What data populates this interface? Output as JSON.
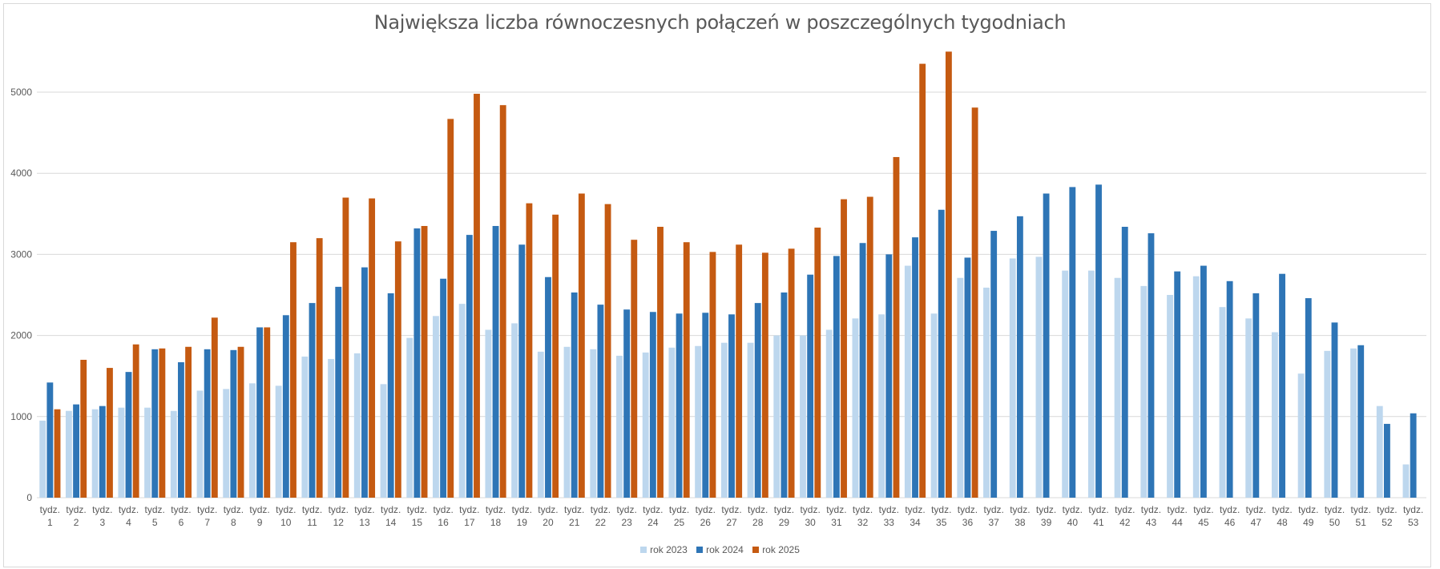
{
  "chart_data": {
    "type": "bar",
    "title": "Największa liczba równoczesnych połączeń w poszczególnych tygodniach",
    "xlabel": "",
    "ylabel": "",
    "ylim": [
      0,
      5500
    ],
    "yticks": [
      0,
      1000,
      2000,
      3000,
      4000,
      5000
    ],
    "grid": true,
    "legend_position": "bottom",
    "categories": [
      "tydz. 1",
      "tydz. 2",
      "tydz. 3",
      "tydz. 4",
      "tydz. 5",
      "tydz. 6",
      "tydz. 7",
      "tydz. 8",
      "tydz. 9",
      "tydz. 10",
      "tydz. 11",
      "tydz. 12",
      "tydz. 13",
      "tydz. 14",
      "tydz. 15",
      "tydz. 16",
      "tydz. 17",
      "tydz. 18",
      "tydz. 19",
      "tydz. 20",
      "tydz. 21",
      "tydz. 22",
      "tydz. 23",
      "tydz. 24",
      "tydz. 25",
      "tydz. 26",
      "tydz. 27",
      "tydz. 28",
      "tydz. 29",
      "tydz. 30",
      "tydz. 31",
      "tydz. 32",
      "tydz. 33",
      "tydz. 34",
      "tydz. 35",
      "tydz. 36",
      "tydz. 37",
      "tydz. 38",
      "tydz. 39",
      "tydz. 40",
      "tydz. 41",
      "tydz. 42",
      "tydz. 43",
      "tydz. 44",
      "tydz. 45",
      "tydz. 46",
      "tydz. 47",
      "tydz. 48",
      "tydz. 49",
      "tydz. 50",
      "tydz. 51",
      "tydz. 52",
      "tydz. 53"
    ],
    "series": [
      {
        "name": "rok 2023",
        "color": "#bdd7ee",
        "values": [
          950,
          1070,
          1090,
          1110,
          1110,
          1070,
          1320,
          1340,
          1410,
          1380,
          1740,
          1710,
          1780,
          1400,
          1970,
          2240,
          2390,
          2070,
          2150,
          1800,
          1860,
          1830,
          1750,
          1790,
          1850,
          1870,
          1910,
          1910,
          2000,
          2000,
          2070,
          2210,
          2260,
          2860,
          2270,
          2710,
          2590,
          2950,
          2970,
          2800,
          2800,
          2710,
          2610,
          2500,
          2730,
          2350,
          2210,
          2040,
          1530,
          1810,
          1840,
          1130,
          410
        ]
      },
      {
        "name": "rok 2024",
        "color": "#2e75b6",
        "values": [
          1420,
          1150,
          1130,
          1550,
          1830,
          1670,
          1830,
          1820,
          2100,
          2250,
          2400,
          2600,
          2840,
          2520,
          3320,
          2700,
          3240,
          3350,
          3120,
          2720,
          2530,
          2380,
          2320,
          2290,
          2270,
          2280,
          2260,
          2400,
          2530,
          2750,
          2980,
          3140,
          3000,
          3210,
          3550,
          2960,
          3290,
          3470,
          3750,
          3830,
          3860,
          3340,
          3260,
          2790,
          2860,
          2670,
          2520,
          2760,
          2460,
          2160,
          1880,
          910,
          1040
        ]
      },
      {
        "name": "rok 2025",
        "color": "#c55a11",
        "values": [
          1090,
          1700,
          1600,
          1890,
          1840,
          1860,
          2220,
          1860,
          2100,
          3150,
          3200,
          3700,
          3690,
          3160,
          3350,
          4670,
          4980,
          4840,
          3630,
          3490,
          3750,
          3620,
          3180,
          3340,
          3150,
          3030,
          3120,
          3020,
          3070,
          3330,
          3680,
          3710,
          4200,
          5350,
          5500,
          4810,
          null,
          null,
          null,
          null,
          null,
          null,
          null,
          null,
          null,
          null,
          null,
          null,
          null,
          null,
          null,
          null,
          null
        ]
      }
    ]
  },
  "legend": {
    "items": [
      {
        "label": "rok 2023",
        "color": "#bdd7ee"
      },
      {
        "label": "rok 2024",
        "color": "#2e75b6"
      },
      {
        "label": "rok 2025",
        "color": "#c55a11"
      }
    ]
  }
}
